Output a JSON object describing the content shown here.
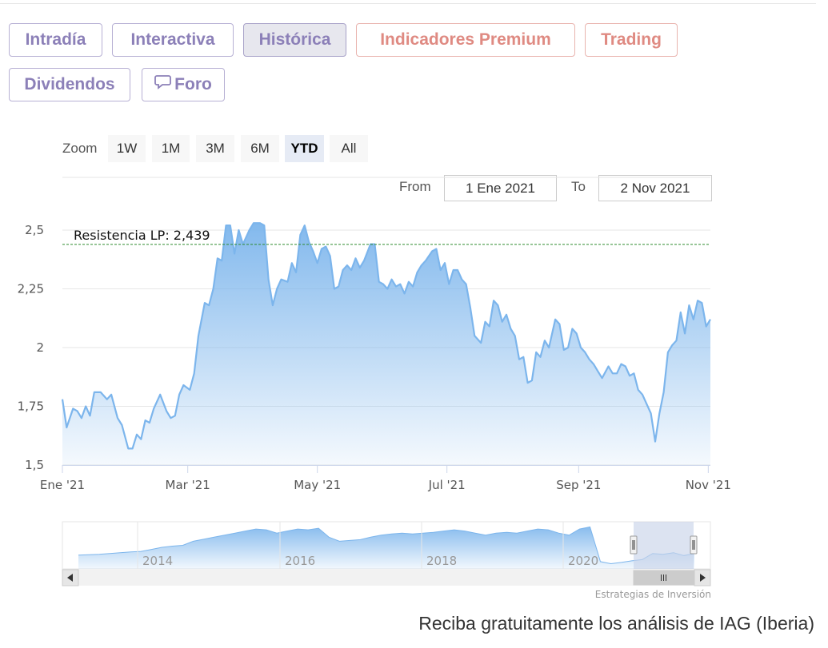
{
  "tabs": [
    {
      "label": "Intradía",
      "style": "normal"
    },
    {
      "label": "Interactiva",
      "style": "normal"
    },
    {
      "label": "Histórica",
      "style": "active"
    },
    {
      "label": "Indicadores Premium",
      "style": "red"
    },
    {
      "label": "Trading",
      "style": "red"
    },
    {
      "label": "Dividendos",
      "style": "normal"
    },
    {
      "label": "Foro",
      "style": "normal",
      "icon": "speech-bubble-icon"
    }
  ],
  "range_selector": {
    "zoom_label": "Zoom",
    "buttons": [
      "1W",
      "1M",
      "3M",
      "6M",
      "YTD",
      "All"
    ],
    "selected": "YTD",
    "from_label": "From",
    "from_value": "1 Ene 2021",
    "to_label": "To",
    "to_value": "2 Nov 2021"
  },
  "colors": {
    "line": "#7cb5ec",
    "area_top": "#7cb5ec",
    "resistance": "#2e8b2e",
    "navigator_mask": "#c9d4ea"
  },
  "chart_data": {
    "type": "area",
    "x_format": "month-day",
    "xlim": [
      "2021-01-01",
      "2021-11-02"
    ],
    "ylim": [
      1.5,
      2.5
    ],
    "ytick_labels": [
      "1,5",
      "1,75",
      "2",
      "2,25",
      "2,5"
    ],
    "ytick_values": [
      1.5,
      1.75,
      2.0,
      2.25,
      2.5
    ],
    "xtick_labels": [
      "Ene '21",
      "Mar '21",
      "May '21",
      "Jul '21",
      "Sep '21",
      "Nov '21"
    ],
    "xtick_values": [
      "2021-01-01",
      "2021-03-01",
      "2021-05-01",
      "2021-07-01",
      "2021-09-01",
      "2021-11-01"
    ],
    "grid": true,
    "annotations": [
      {
        "type": "hline",
        "y": 2.439,
        "label": "Resistencia LP: 2,439"
      }
    ],
    "series": [
      {
        "points": [
          [
            "2021-01-01",
            1.78
          ],
          [
            "2021-01-03",
            1.66
          ],
          [
            "2021-01-06",
            1.74
          ],
          [
            "2021-01-08",
            1.73
          ],
          [
            "2021-01-10",
            1.7
          ],
          [
            "2021-01-12",
            1.75
          ],
          [
            "2021-01-14",
            1.71
          ],
          [
            "2021-01-16",
            1.81
          ],
          [
            "2021-01-19",
            1.81
          ],
          [
            "2021-01-22",
            1.78
          ],
          [
            "2021-01-24",
            1.8
          ],
          [
            "2021-01-27",
            1.7
          ],
          [
            "2021-01-29",
            1.67
          ],
          [
            "2021-02-01",
            1.57
          ],
          [
            "2021-02-03",
            1.57
          ],
          [
            "2021-02-05",
            1.63
          ],
          [
            "2021-02-07",
            1.61
          ],
          [
            "2021-02-09",
            1.69
          ],
          [
            "2021-02-11",
            1.68
          ],
          [
            "2021-02-13",
            1.74
          ],
          [
            "2021-02-16",
            1.8
          ],
          [
            "2021-02-19",
            1.73
          ],
          [
            "2021-02-21",
            1.7
          ],
          [
            "2021-02-23",
            1.71
          ],
          [
            "2021-02-25",
            1.8
          ],
          [
            "2021-02-27",
            1.84
          ],
          [
            "2021-03-02",
            1.82
          ],
          [
            "2021-03-04",
            1.89
          ],
          [
            "2021-03-06",
            2.05
          ],
          [
            "2021-03-09",
            2.19
          ],
          [
            "2021-03-11",
            2.18
          ],
          [
            "2021-03-13",
            2.25
          ],
          [
            "2021-03-15",
            2.38
          ],
          [
            "2021-03-17",
            2.37
          ],
          [
            "2021-03-19",
            2.52
          ],
          [
            "2021-03-21",
            2.52
          ],
          [
            "2021-03-23",
            2.4
          ],
          [
            "2021-03-25",
            2.5
          ],
          [
            "2021-03-27",
            2.44
          ],
          [
            "2021-03-30",
            2.5
          ],
          [
            "2021-04-01",
            2.53
          ],
          [
            "2021-04-04",
            2.53
          ],
          [
            "2021-04-06",
            2.52
          ],
          [
            "2021-04-08",
            2.29
          ],
          [
            "2021-04-10",
            2.18
          ],
          [
            "2021-04-12",
            2.25
          ],
          [
            "2021-04-14",
            2.29
          ],
          [
            "2021-04-17",
            2.28
          ],
          [
            "2021-04-19",
            2.36
          ],
          [
            "2021-04-21",
            2.32
          ],
          [
            "2021-04-23",
            2.48
          ],
          [
            "2021-04-25",
            2.52
          ],
          [
            "2021-04-27",
            2.45
          ],
          [
            "2021-04-29",
            2.41
          ],
          [
            "2021-05-01",
            2.36
          ],
          [
            "2021-05-03",
            2.42
          ],
          [
            "2021-05-05",
            2.43
          ],
          [
            "2021-05-07",
            2.39
          ],
          [
            "2021-05-09",
            2.25
          ],
          [
            "2021-05-11",
            2.26
          ],
          [
            "2021-05-13",
            2.33
          ],
          [
            "2021-05-15",
            2.35
          ],
          [
            "2021-05-17",
            2.33
          ],
          [
            "2021-05-19",
            2.38
          ],
          [
            "2021-05-21",
            2.34
          ],
          [
            "2021-05-23",
            2.37
          ],
          [
            "2021-05-26",
            2.44
          ],
          [
            "2021-05-28",
            2.44
          ],
          [
            "2021-05-30",
            2.28
          ],
          [
            "2021-06-01",
            2.27
          ],
          [
            "2021-06-03",
            2.25
          ],
          [
            "2021-06-05",
            2.29
          ],
          [
            "2021-06-07",
            2.26
          ],
          [
            "2021-06-09",
            2.27
          ],
          [
            "2021-06-11",
            2.23
          ],
          [
            "2021-06-13",
            2.28
          ],
          [
            "2021-06-15",
            2.26
          ],
          [
            "2021-06-17",
            2.32
          ],
          [
            "2021-06-19",
            2.35
          ],
          [
            "2021-06-21",
            2.37
          ],
          [
            "2021-06-24",
            2.41
          ],
          [
            "2021-06-26",
            2.42
          ],
          [
            "2021-06-28",
            2.33
          ],
          [
            "2021-06-30",
            2.36
          ],
          [
            "2021-07-02",
            2.27
          ],
          [
            "2021-07-04",
            2.33
          ],
          [
            "2021-07-06",
            2.33
          ],
          [
            "2021-07-08",
            2.29
          ],
          [
            "2021-07-10",
            2.27
          ],
          [
            "2021-07-12",
            2.17
          ],
          [
            "2021-07-14",
            2.05
          ],
          [
            "2021-07-17",
            2.02
          ],
          [
            "2021-07-19",
            2.11
          ],
          [
            "2021-07-21",
            2.09
          ],
          [
            "2021-07-23",
            2.2
          ],
          [
            "2021-07-25",
            2.18
          ],
          [
            "2021-07-27",
            2.11
          ],
          [
            "2021-07-29",
            2.14
          ],
          [
            "2021-07-31",
            2.08
          ],
          [
            "2021-08-02",
            2.05
          ],
          [
            "2021-08-04",
            1.95
          ],
          [
            "2021-08-06",
            1.96
          ],
          [
            "2021-08-08",
            1.85
          ],
          [
            "2021-08-10",
            1.86
          ],
          [
            "2021-08-12",
            1.98
          ],
          [
            "2021-08-14",
            1.96
          ],
          [
            "2021-08-16",
            2.03
          ],
          [
            "2021-08-18",
            2.0
          ],
          [
            "2021-08-21",
            2.12
          ],
          [
            "2021-08-23",
            2.1
          ],
          [
            "2021-08-25",
            1.99
          ],
          [
            "2021-08-27",
            2.0
          ],
          [
            "2021-08-29",
            2.08
          ],
          [
            "2021-08-31",
            2.06
          ],
          [
            "2021-09-02",
            2.0
          ],
          [
            "2021-09-04",
            1.98
          ],
          [
            "2021-09-06",
            1.95
          ],
          [
            "2021-09-08",
            1.93
          ],
          [
            "2021-09-10",
            1.9
          ],
          [
            "2021-09-12",
            1.87
          ],
          [
            "2021-09-15",
            1.92
          ],
          [
            "2021-09-17",
            1.89
          ],
          [
            "2021-09-19",
            1.89
          ],
          [
            "2021-09-21",
            1.93
          ],
          [
            "2021-09-23",
            1.92
          ],
          [
            "2021-09-25",
            1.88
          ],
          [
            "2021-09-27",
            1.89
          ],
          [
            "2021-09-29",
            1.82
          ],
          [
            "2021-10-01",
            1.8
          ],
          [
            "2021-10-03",
            1.76
          ],
          [
            "2021-10-05",
            1.72
          ],
          [
            "2021-10-07",
            1.6
          ],
          [
            "2021-10-09",
            1.72
          ],
          [
            "2021-10-11",
            1.81
          ],
          [
            "2021-10-13",
            1.98
          ],
          [
            "2021-10-15",
            2.01
          ],
          [
            "2021-10-17",
            2.03
          ],
          [
            "2021-10-19",
            2.15
          ],
          [
            "2021-10-21",
            2.06
          ],
          [
            "2021-10-23",
            2.18
          ],
          [
            "2021-10-25",
            2.12
          ],
          [
            "2021-10-27",
            2.2
          ],
          [
            "2021-10-29",
            2.19
          ],
          [
            "2021-10-31",
            2.09
          ],
          [
            "2021-11-02",
            2.12
          ]
        ]
      }
    ],
    "navigator": {
      "xtick_labels": [
        "2014",
        "2016",
        "2018",
        "2020"
      ],
      "selected_range": [
        "2021-01-01",
        "2021-11-02"
      ]
    }
  },
  "footer": {
    "credits": "Estrategias de Inversión",
    "cta": "Reciba gratuitamente los análisis de IAG (Iberia)"
  }
}
